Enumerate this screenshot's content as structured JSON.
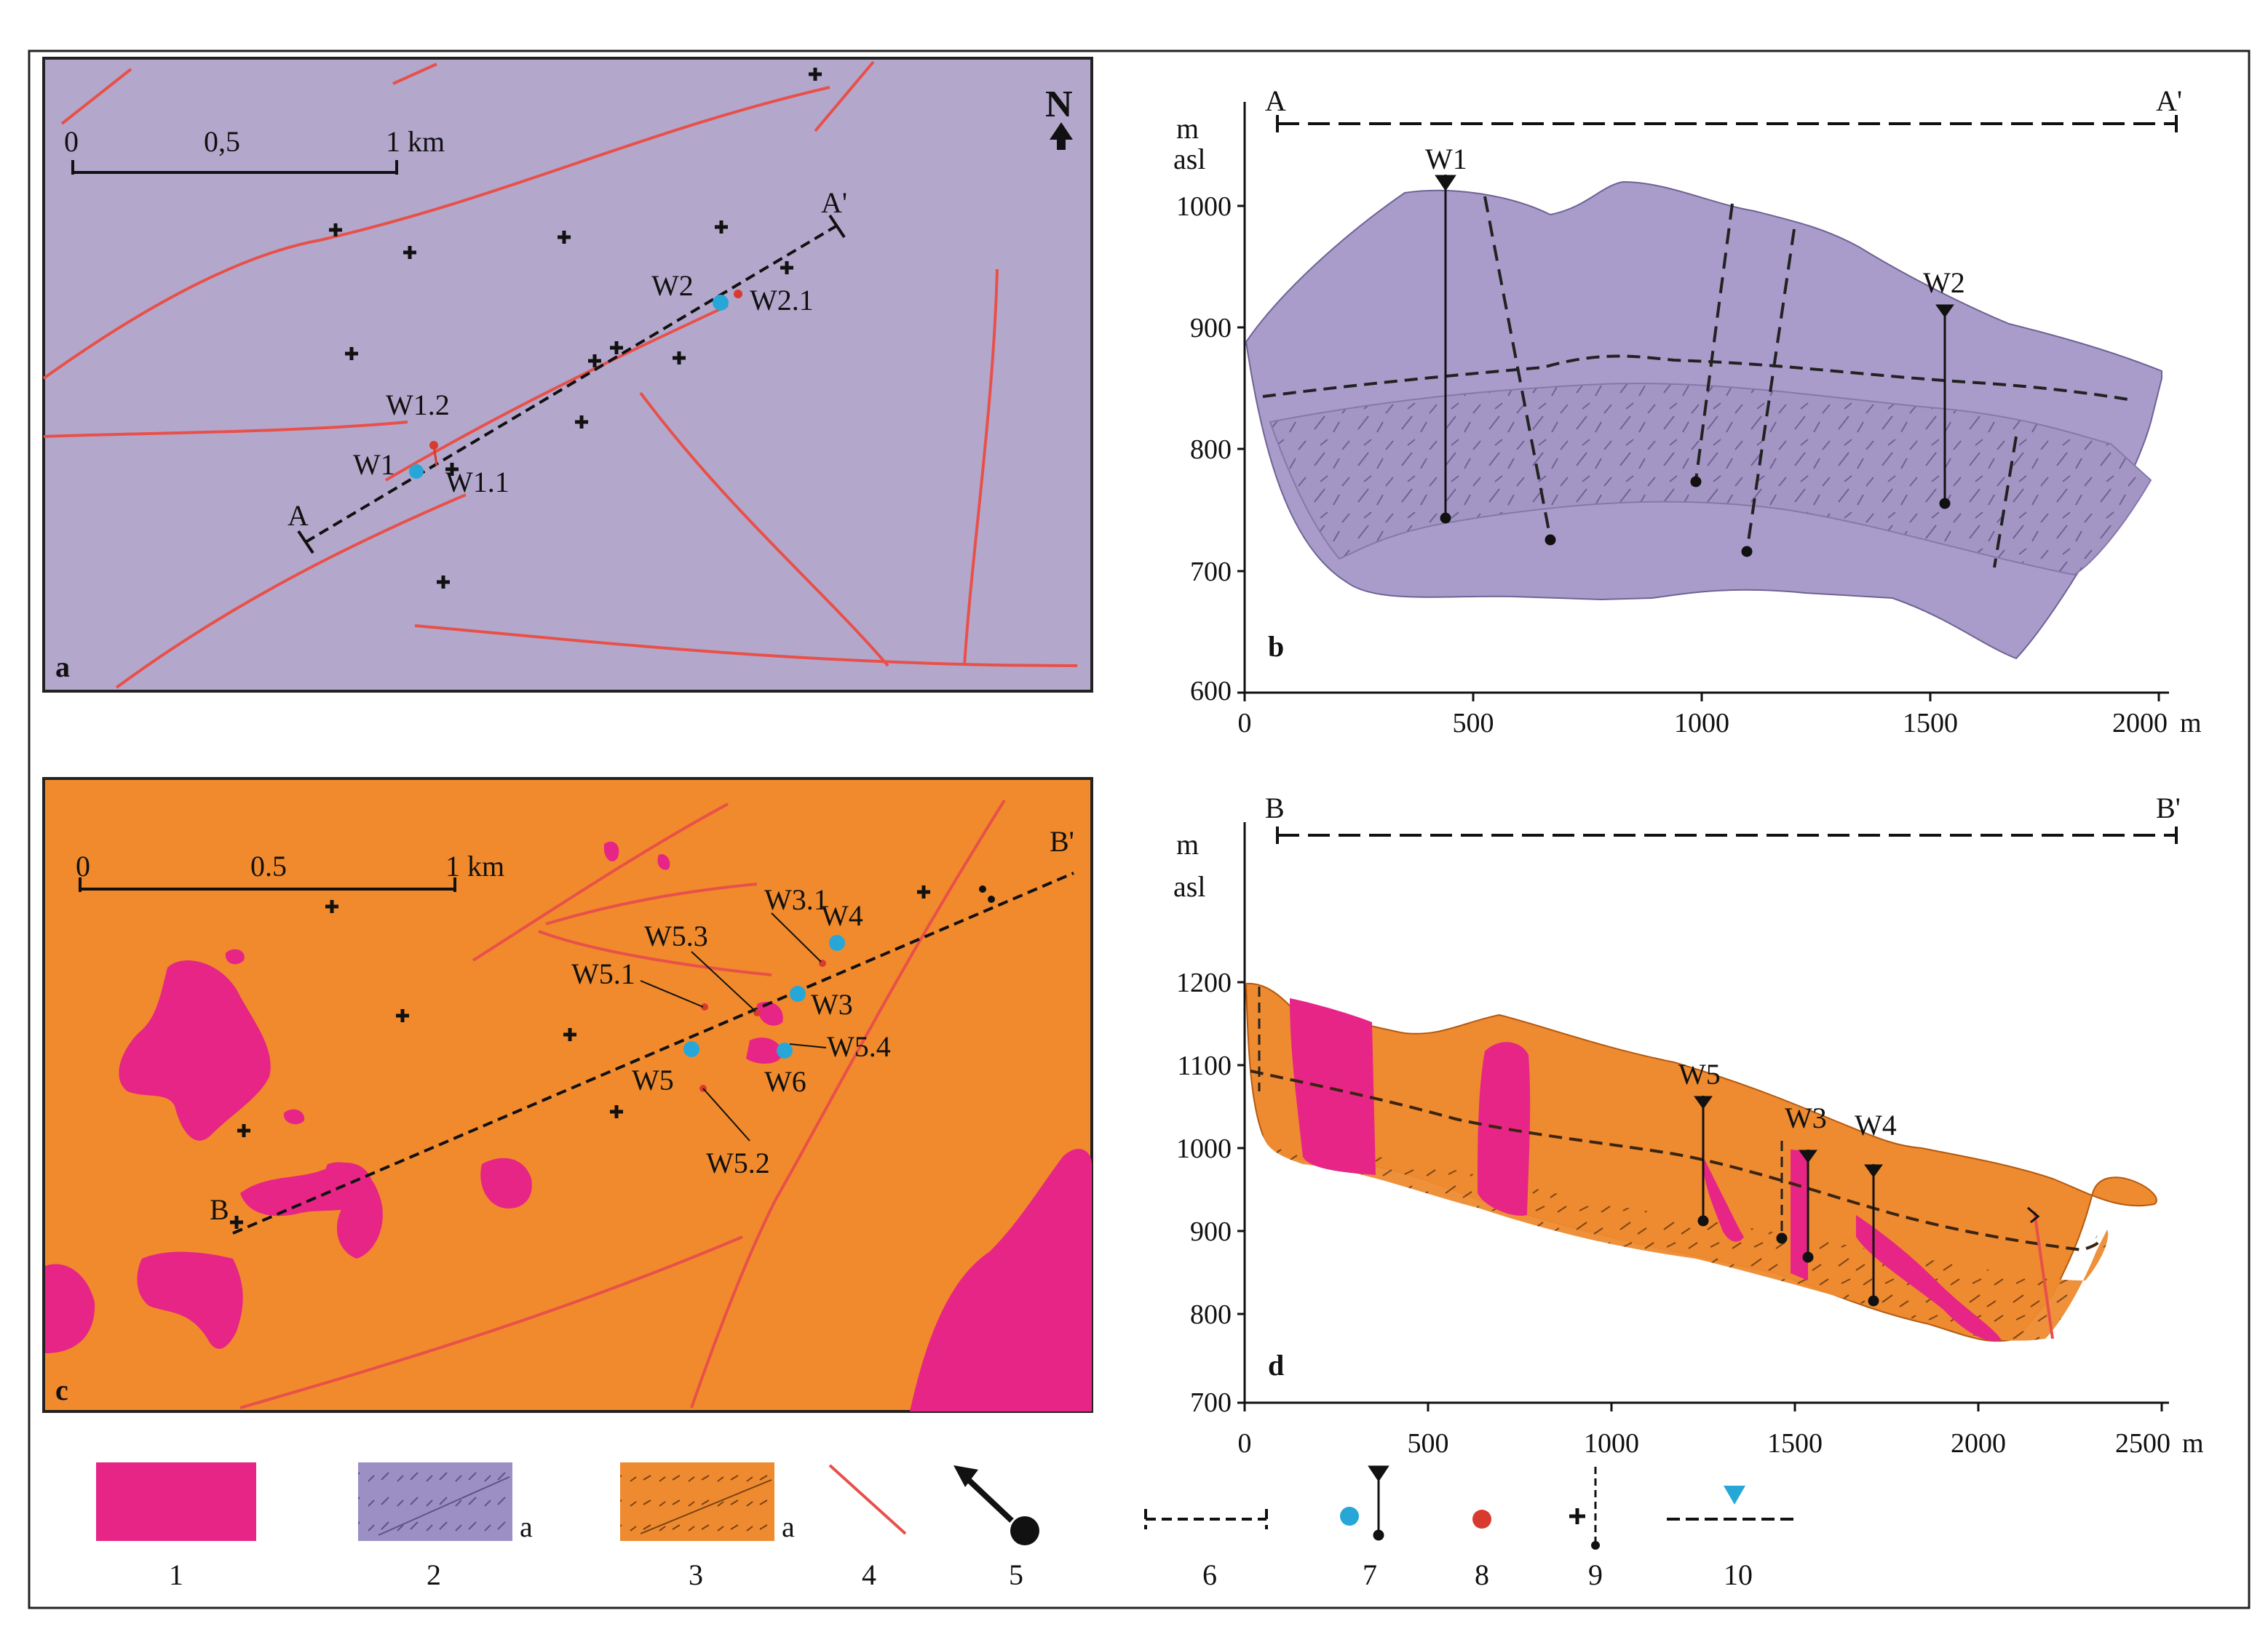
{
  "colors": {
    "panel_a_bg": "#b3a8cc",
    "section_b_fill": "#a99ccb",
    "panel_c_bg": "#f08a2c",
    "intrusion": "#e62587",
    "fault": "#e8504a",
    "well_blue": "#27a7d8",
    "well_red": "#d93a30",
    "frame": "#222222"
  },
  "panel_a": {
    "letter": "a",
    "north": "N",
    "scale": {
      "t0": "0",
      "t1": "0,5",
      "t2": "1 km"
    },
    "section_start": "A",
    "section_end": "A'",
    "wells": {
      "w1": "W1",
      "w11": "W1.1",
      "w12": "W1.2",
      "w2": "W2",
      "w21": "W2.1"
    }
  },
  "panel_b": {
    "letter": "b",
    "section_start": "A",
    "section_end": "A'",
    "yunit_line1": "m",
    "yunit_line2": "asl",
    "xunit": "m",
    "yticks": [
      "1000",
      "900",
      "800",
      "700",
      "600"
    ],
    "xticks": [
      "0",
      "500",
      "1000",
      "1500",
      "2000"
    ],
    "wells": {
      "w1": "W1",
      "w2": "W2"
    }
  },
  "panel_c": {
    "letter": "c",
    "scale": {
      "t0": "0",
      "t1": "0.5",
      "t2": "1 km"
    },
    "section_start": "B",
    "section_end": "B'",
    "wells": {
      "w31": "W3.1",
      "w4": "W4",
      "w53": "W5.3",
      "w51": "W5.1",
      "w3": "W3",
      "w54": "W5.4",
      "w5": "W5",
      "w6": "W6",
      "w52": "W5.2"
    }
  },
  "panel_d": {
    "letter": "d",
    "section_start": "B",
    "section_end": "B'",
    "yunit_line1": "m",
    "yunit_line2": "asl",
    "xunit": "m",
    "yticks": [
      "1200",
      "1100",
      "1000",
      "900",
      "800",
      "700"
    ],
    "xticks": [
      "0",
      "500",
      "1000",
      "1500",
      "2000",
      "2500"
    ],
    "wells": {
      "w5": "W5",
      "w3": "W3",
      "w4": "W4"
    }
  },
  "legend": {
    "item1": "1",
    "item2": "2",
    "item3": "3",
    "item4": "4",
    "item5": "5",
    "item6": "6",
    "item7": "7",
    "item8": "8",
    "item9": "9",
    "item10": "10",
    "sub2": "a",
    "sub3": "a"
  }
}
